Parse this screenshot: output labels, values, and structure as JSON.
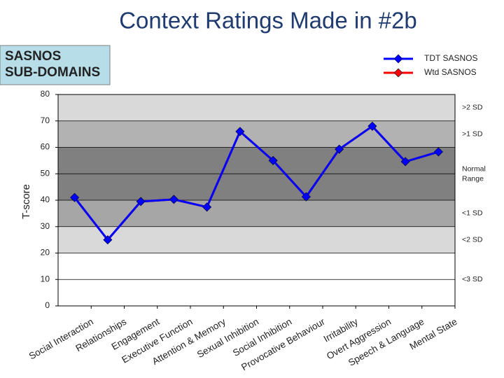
{
  "chart_data": {
    "type": "line",
    "title": "Context Ratings Made in #2b",
    "box_label": [
      "SASNOS",
      "SUB-DOMAINS"
    ],
    "ylabel": "T-score",
    "categories": [
      "Social Interaction",
      "Relationships",
      "Engagement",
      "Executive Function",
      "Attention & Memory",
      "Sexual Inhibition",
      "Social Inhibition",
      "Provocative Behaviour",
      "Irritability",
      "Overt Aggression",
      "Speech & Language",
      "Mental State"
    ],
    "series": [
      {
        "name": "Wtd SASNOS",
        "color": "#ff0000",
        "values": [
          41,
          25,
          39.5,
          40.3,
          37.4,
          66,
          55,
          41.3,
          59.3,
          68,
          54.6,
          58.3
        ]
      },
      {
        "name": "TDT SASNOS",
        "color": "#0000ff",
        "values": [
          41,
          25,
          39.5,
          40.3,
          37.4,
          66,
          55,
          41.3,
          59.3,
          68,
          54.6,
          58.3
        ]
      }
    ],
    "legend_order": [
      1,
      0
    ],
    "ylim": [
      0,
      80
    ],
    "yticks": [
      0,
      10,
      20,
      30,
      40,
      50,
      60,
      70,
      80
    ],
    "bands": [
      {
        "from": 70,
        "to": 80,
        "label": ">2 SD",
        "color": "#d9d9d9"
      },
      {
        "from": 60,
        "to": 70,
        "label": ">1 SD",
        "color": "#b2b2b2"
      },
      {
        "from": 40,
        "to": 60,
        "label": "Normal Range",
        "color": "#808080"
      },
      {
        "from": 30,
        "to": 40,
        "label": "<1 SD",
        "color": "#a6a6a6"
      },
      {
        "from": 20,
        "to": 30,
        "label": "<2 SD",
        "color": "#d9d9d9"
      },
      {
        "from": 0,
        "to": 20,
        "label": "<3 SD",
        "color": "#ffffff"
      }
    ],
    "grid": true
  }
}
